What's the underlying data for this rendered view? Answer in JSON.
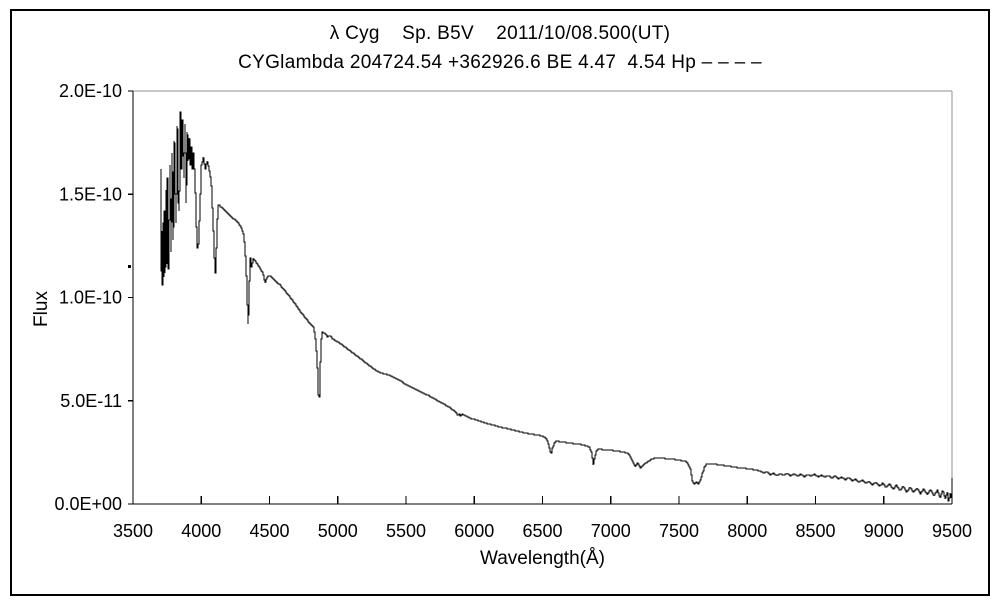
{
  "header": {
    "title": "λ Cyg    Sp. B5V    2011/10/08.500(UT)",
    "subtitle": "CYGlambda 204724.54 +362926.6 BE 4.47  4.54 Hp – – – –"
  },
  "colors": {
    "background": "#ffffff",
    "spectrum_line": "#000000",
    "axis_black": "#000000",
    "frame_gray": "#909090",
    "text": "#000000"
  },
  "chart_data": {
    "type": "line",
    "title": "λ Cyg    Sp. B5V    2011/10/08.500(UT)",
    "subtitle": "CYGlambda 204724.54 +362926.6 BE 4.47  4.54 Hp – – – –",
    "xlabel": "Wavelength(Å)",
    "ylabel": "Flux",
    "grid": false,
    "legend": "none",
    "x_range": [
      3500,
      9500
    ],
    "y_range_label": [
      "0.0E+00",
      "2.0E-10"
    ],
    "y_max_e11": 20,
    "flux_scale": "point flux values are in units of 1e-11 (axis shows E-10 / E-11 scientific labels)",
    "x_ticks": [
      {
        "value": 3500,
        "label": "3500"
      },
      {
        "value": 4000,
        "label": "4000"
      },
      {
        "value": 4500,
        "label": "4500"
      },
      {
        "value": 5000,
        "label": "5000"
      },
      {
        "value": 5500,
        "label": "5500"
      },
      {
        "value": 6000,
        "label": "6000"
      },
      {
        "value": 6500,
        "label": "6500"
      },
      {
        "value": 7000,
        "label": "7000"
      },
      {
        "value": 7500,
        "label": "7500"
      },
      {
        "value": 8000,
        "label": "8000"
      },
      {
        "value": 8500,
        "label": "8500"
      },
      {
        "value": 9000,
        "label": "9000"
      },
      {
        "value": 9500,
        "label": "9500"
      }
    ],
    "y_ticks": [
      {
        "flux_e11": 20,
        "label": "2.0E-10"
      },
      {
        "flux_e11": 15,
        "label": "1.5E-10"
      },
      {
        "flux_e11": 10,
        "label": "1.0E-10"
      },
      {
        "flux_e11": 5,
        "label": "5.0E-11"
      },
      {
        "flux_e11": 0,
        "label": "0.0E+00"
      }
    ],
    "points": [
      [
        3705,
        16.2
      ],
      [
        3708,
        11.3
      ],
      [
        3712,
        13.2
      ],
      [
        3715,
        10.6
      ],
      [
        3720,
        13.6
      ],
      [
        3724,
        11.0
      ],
      [
        3729,
        14.2
      ],
      [
        3734,
        11.2
      ],
      [
        3740,
        15.2
      ],
      [
        3746,
        11.6
      ],
      [
        3752,
        15.8
      ],
      [
        3760,
        11.4
      ],
      [
        3768,
        16.4
      ],
      [
        3776,
        12.2
      ],
      [
        3784,
        17.0
      ],
      [
        3792,
        12.8
      ],
      [
        3800,
        17.6
      ],
      [
        3812,
        13.6
      ],
      [
        3822,
        18.3
      ],
      [
        3830,
        14.6
      ],
      [
        3835,
        14.2
      ],
      [
        3845,
        19.0
      ],
      [
        3852,
        16.2
      ],
      [
        3860,
        18.6
      ],
      [
        3870,
        15.8
      ],
      [
        3878,
        18.4
      ],
      [
        3886,
        14.6
      ],
      [
        3895,
        18.0
      ],
      [
        3902,
        16.6
      ],
      [
        3910,
        17.7
      ],
      [
        3918,
        16.4
      ],
      [
        3926,
        17.3
      ],
      [
        3933,
        16.2
      ],
      [
        3940,
        17.0
      ],
      [
        3950,
        16.2
      ],
      [
        3958,
        14.0
      ],
      [
        3968,
        12.4
      ],
      [
        3978,
        12.6
      ],
      [
        3988,
        14.6
      ],
      [
        4000,
        16.4
      ],
      [
        4012,
        16.8
      ],
      [
        4026,
        16.2
      ],
      [
        4040,
        16.6
      ],
      [
        4055,
        16.2
      ],
      [
        4070,
        15.6
      ],
      [
        4085,
        13.4
      ],
      [
        4095,
        11.9
      ],
      [
        4101,
        11.2
      ],
      [
        4108,
        12.4
      ],
      [
        4116,
        13.8
      ],
      [
        4125,
        14.5
      ],
      [
        4140,
        14.4
      ],
      [
        4160,
        14.3
      ],
      [
        4180,
        14.15
      ],
      [
        4200,
        14.0
      ],
      [
        4220,
        13.9
      ],
      [
        4245,
        13.75
      ],
      [
        4270,
        13.6
      ],
      [
        4290,
        13.4
      ],
      [
        4310,
        13.0
      ],
      [
        4325,
        11.6
      ],
      [
        4340,
        8.7
      ],
      [
        4352,
        10.8
      ],
      [
        4360,
        11.9
      ],
      [
        4368,
        11.5
      ],
      [
        4376,
        11.9
      ],
      [
        4390,
        11.8
      ],
      [
        4410,
        11.6
      ],
      [
        4430,
        11.4
      ],
      [
        4450,
        11.15
      ],
      [
        4465,
        10.7
      ],
      [
        4480,
        11.0
      ],
      [
        4500,
        11.05
      ],
      [
        4525,
        10.9
      ],
      [
        4550,
        10.75
      ],
      [
        4575,
        10.6
      ],
      [
        4600,
        10.4
      ],
      [
        4625,
        10.2
      ],
      [
        4650,
        10.0
      ],
      [
        4675,
        9.8
      ],
      [
        4700,
        9.55
      ],
      [
        4715,
        9.4
      ],
      [
        4730,
        9.25
      ],
      [
        4745,
        9.15
      ],
      [
        4760,
        9.0
      ],
      [
        4775,
        8.9
      ],
      [
        4790,
        8.75
      ],
      [
        4805,
        8.65
      ],
      [
        4820,
        8.55
      ],
      [
        4835,
        8.0
      ],
      [
        4848,
        6.6
      ],
      [
        4858,
        5.3
      ],
      [
        4864,
        5.2
      ],
      [
        4872,
        6.9
      ],
      [
        4878,
        8.0
      ],
      [
        4884,
        8.35
      ],
      [
        4890,
        8.3
      ],
      [
        4910,
        8.25
      ],
      [
        4922,
        8.1
      ],
      [
        4940,
        8.15
      ],
      [
        4960,
        8.0
      ],
      [
        4980,
        7.9
      ],
      [
        5000,
        7.85
      ],
      [
        5020,
        7.75
      ],
      [
        5040,
        7.65
      ],
      [
        5060,
        7.55
      ],
      [
        5080,
        7.45
      ],
      [
        5100,
        7.35
      ],
      [
        5130,
        7.2
      ],
      [
        5160,
        7.05
      ],
      [
        5190,
        6.9
      ],
      [
        5220,
        6.75
      ],
      [
        5250,
        6.6
      ],
      [
        5280,
        6.45
      ],
      [
        5310,
        6.35
      ],
      [
        5340,
        6.3
      ],
      [
        5370,
        6.25
      ],
      [
        5400,
        6.15
      ],
      [
        5430,
        6.05
      ],
      [
        5460,
        5.95
      ],
      [
        5490,
        5.8
      ],
      [
        5520,
        5.7
      ],
      [
        5550,
        5.6
      ],
      [
        5580,
        5.5
      ],
      [
        5610,
        5.4
      ],
      [
        5650,
        5.3
      ],
      [
        5690,
        5.15
      ],
      [
        5730,
        5.0
      ],
      [
        5770,
        4.85
      ],
      [
        5810,
        4.7
      ],
      [
        5840,
        4.55
      ],
      [
        5860,
        4.45
      ],
      [
        5876,
        4.3
      ],
      [
        5890,
        4.35
      ],
      [
        5896,
        4.25
      ],
      [
        5910,
        4.35
      ],
      [
        5940,
        4.25
      ],
      [
        5970,
        4.15
      ],
      [
        6000,
        4.1
      ],
      [
        6040,
        4.0
      ],
      [
        6080,
        3.92
      ],
      [
        6120,
        3.85
      ],
      [
        6160,
        3.78
      ],
      [
        6200,
        3.7
      ],
      [
        6240,
        3.65
      ],
      [
        6280,
        3.58
      ],
      [
        6320,
        3.52
      ],
      [
        6360,
        3.46
      ],
      [
        6400,
        3.4
      ],
      [
        6440,
        3.36
      ],
      [
        6480,
        3.32
      ],
      [
        6510,
        3.25
      ],
      [
        6530,
        3.1
      ],
      [
        6545,
        2.8
      ],
      [
        6556,
        2.5
      ],
      [
        6563,
        2.45
      ],
      [
        6572,
        2.7
      ],
      [
        6582,
        2.95
      ],
      [
        6600,
        3.05
      ],
      [
        6640,
        3.0
      ],
      [
        6680,
        2.97
      ],
      [
        6720,
        2.93
      ],
      [
        6760,
        2.9
      ],
      [
        6800,
        2.85
      ],
      [
        6840,
        2.75
      ],
      [
        6858,
        2.5
      ],
      [
        6868,
        1.9
      ],
      [
        6878,
        2.2
      ],
      [
        6890,
        2.55
      ],
      [
        6910,
        2.65
      ],
      [
        6950,
        2.63
      ],
      [
        7000,
        2.6
      ],
      [
        7050,
        2.56
      ],
      [
        7100,
        2.5
      ],
      [
        7130,
        2.42
      ],
      [
        7155,
        2.1
      ],
      [
        7175,
        1.8
      ],
      [
        7195,
        2.0
      ],
      [
        7215,
        1.72
      ],
      [
        7235,
        1.9
      ],
      [
        7260,
        2.0
      ],
      [
        7290,
        2.15
      ],
      [
        7320,
        2.22
      ],
      [
        7360,
        2.23
      ],
      [
        7400,
        2.2
      ],
      [
        7440,
        2.18
      ],
      [
        7480,
        2.14
      ],
      [
        7520,
        2.1
      ],
      [
        7555,
        2.05
      ],
      [
        7580,
        1.7
      ],
      [
        7595,
        1.1
      ],
      [
        7610,
        0.98
      ],
      [
        7625,
        1.05
      ],
      [
        7640,
        0.98
      ],
      [
        7655,
        1.15
      ],
      [
        7670,
        1.5
      ],
      [
        7685,
        1.8
      ],
      [
        7700,
        1.92
      ],
      [
        7730,
        1.95
      ],
      [
        7770,
        1.92
      ],
      [
        7810,
        1.88
      ],
      [
        7850,
        1.84
      ],
      [
        7890,
        1.8
      ],
      [
        7930,
        1.76
      ],
      [
        7970,
        1.73
      ],
      [
        8010,
        1.7
      ],
      [
        8050,
        1.66
      ],
      [
        8090,
        1.6
      ],
      [
        8115,
        1.5
      ],
      [
        8140,
        1.55
      ],
      [
        8165,
        1.42
      ],
      [
        8190,
        1.48
      ],
      [
        8215,
        1.38
      ],
      [
        8240,
        1.46
      ],
      [
        8265,
        1.4
      ],
      [
        8290,
        1.48
      ],
      [
        8315,
        1.38
      ],
      [
        8340,
        1.45
      ],
      [
        8365,
        1.36
      ],
      [
        8390,
        1.43
      ],
      [
        8415,
        1.32
      ],
      [
        8440,
        1.42
      ],
      [
        8465,
        1.35
      ],
      [
        8490,
        1.44
      ],
      [
        8515,
        1.32
      ],
      [
        8540,
        1.4
      ],
      [
        8565,
        1.3
      ],
      [
        8590,
        1.38
      ],
      [
        8615,
        1.26
      ],
      [
        8640,
        1.35
      ],
      [
        8665,
        1.23
      ],
      [
        8690,
        1.3
      ],
      [
        8715,
        1.18
      ],
      [
        8740,
        1.27
      ],
      [
        8765,
        1.12
      ],
      [
        8790,
        1.21
      ],
      [
        8815,
        1.05
      ],
      [
        8840,
        1.15
      ],
      [
        8865,
        1.0
      ],
      [
        8890,
        1.1
      ],
      [
        8915,
        0.93
      ],
      [
        8940,
        1.05
      ],
      [
        8965,
        0.86
      ],
      [
        8990,
        1.0
      ],
      [
        9015,
        0.8
      ],
      [
        9040,
        0.95
      ],
      [
        9065,
        0.73
      ],
      [
        9090,
        0.9
      ],
      [
        9115,
        0.66
      ],
      [
        9140,
        0.85
      ],
      [
        9165,
        0.6
      ],
      [
        9190,
        0.8
      ],
      [
        9215,
        0.56
      ],
      [
        9240,
        0.78
      ],
      [
        9265,
        0.5
      ],
      [
        9290,
        0.72
      ],
      [
        9315,
        0.46
      ],
      [
        9340,
        0.7
      ],
      [
        9365,
        0.4
      ],
      [
        9390,
        0.68
      ],
      [
        9410,
        0.3
      ],
      [
        9430,
        0.65
      ],
      [
        9448,
        0.25
      ],
      [
        9462,
        0.6
      ],
      [
        9474,
        0.15
      ],
      [
        9484,
        0.55
      ],
      [
        9492,
        0.3
      ],
      [
        9500,
        1.25
      ]
    ]
  }
}
